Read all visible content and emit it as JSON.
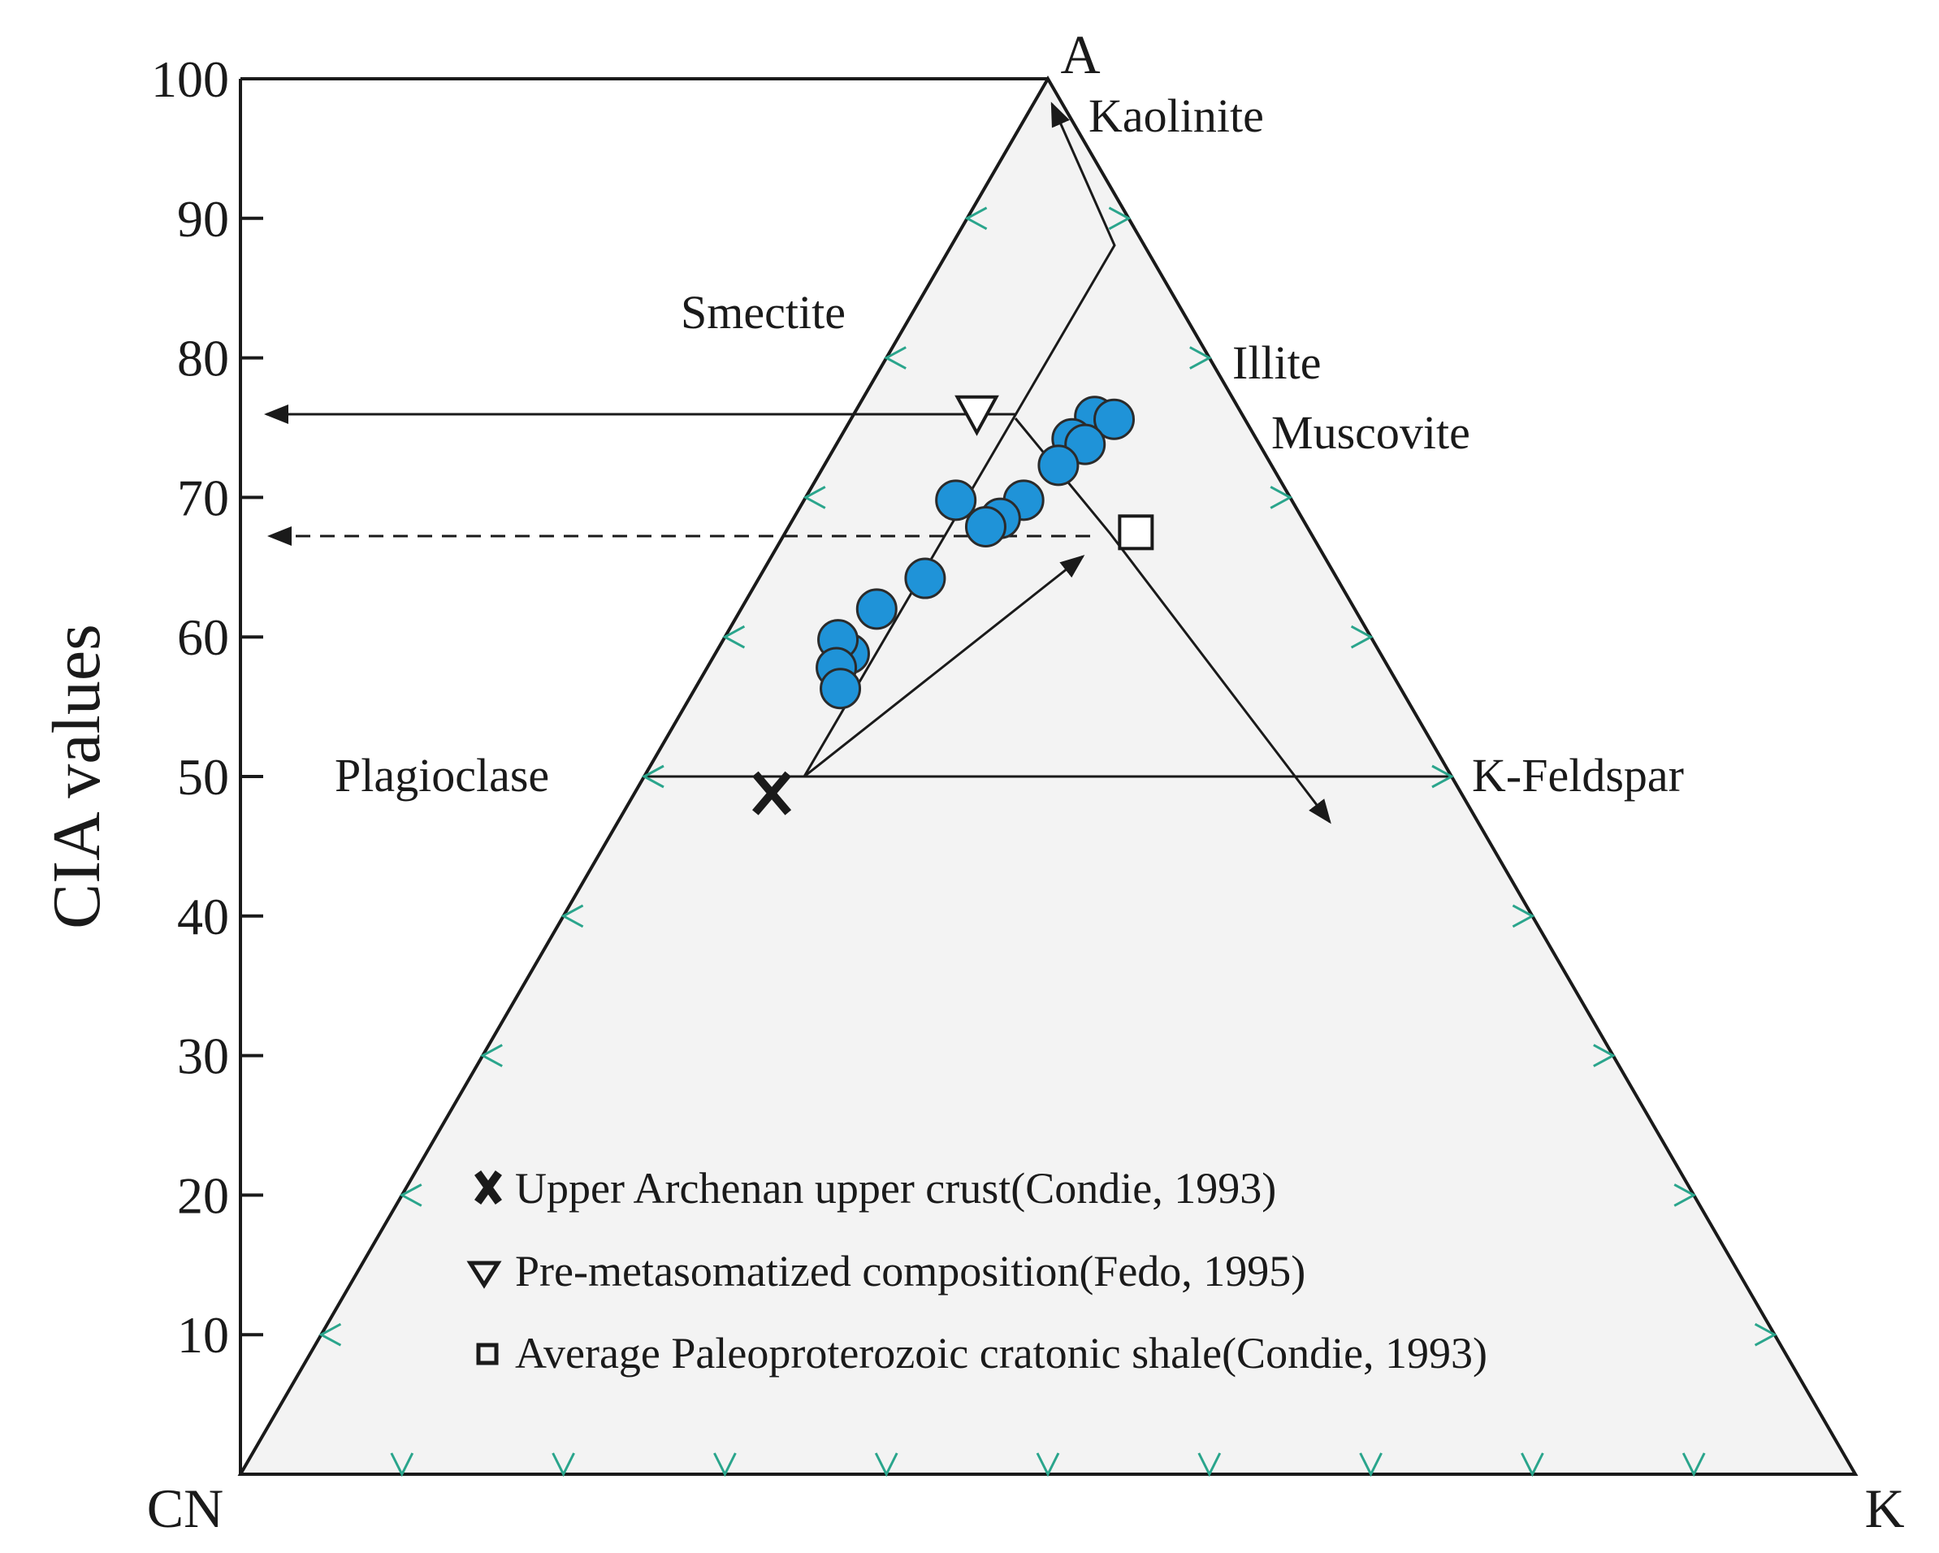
{
  "chart_data": {
    "type": "scatter",
    "subtype": "ternary A-CN-K with CIA scale",
    "ylabel": "CIA values",
    "y_ticks": [
      100,
      90,
      80,
      70,
      60,
      50,
      40,
      30,
      20,
      10
    ],
    "ylim": [
      0,
      100
    ],
    "vertices": {
      "top": "A",
      "left": "CN",
      "right": "K"
    },
    "mineral_labels": {
      "kaolinite": "Kaolinite",
      "smectite": "Smectite",
      "illite": "Illite",
      "muscovite": "Muscovite",
      "plagioclase": "Plagioclase",
      "kfeldspar": "K-Feldspar"
    },
    "samples": {
      "marker": "circle",
      "color": "#1f93d8",
      "points": [
        {
          "k": 15,
          "cia": 75.8
        },
        {
          "k": 16.3,
          "cia": 75.6
        },
        {
          "k": 14.4,
          "cia": 74.2
        },
        {
          "k": 15.4,
          "cia": 73.8
        },
        {
          "k": 14.5,
          "cia": 72.3
        },
        {
          "k": 13.6,
          "cia": 69.8
        },
        {
          "k": 9.4,
          "cia": 69.8
        },
        {
          "k": 12.8,
          "cia": 68.5
        },
        {
          "k": 12.2,
          "cia": 67.9
        },
        {
          "k": 10.3,
          "cia": 64.2
        },
        {
          "k": 8.4,
          "cia": 62.0
        },
        {
          "k": 8.3,
          "cia": 58.8
        },
        {
          "k": 7.1,
          "cia": 59.8
        },
        {
          "k": 8.0,
          "cia": 57.8
        },
        {
          "k": 9.0,
          "cia": 56.3
        }
      ]
    },
    "reference_points": [
      {
        "marker": "x",
        "k": 8.5,
        "cia": 48.8,
        "label": "Upper Archenan upper crust(Condie, 1993)"
      },
      {
        "marker": "triangle-down",
        "k": 7.7,
        "cia": 75.8,
        "label": "Pre-metasomatized composition(Fedo, 1995)"
      },
      {
        "marker": "square",
        "k": 21.7,
        "cia": 67.5,
        "label": "Average Paleoproterozoic cratonic shale(Condie, 1993)"
      }
    ],
    "grid": "tick marks along ternary edges",
    "legend_placement": "bottom-center inside triangle",
    "colors": {
      "samples": "#1f93d8",
      "ticks": "#2aa58c",
      "field": "#f3f3f3",
      "lines": "#1a1a1a"
    }
  }
}
